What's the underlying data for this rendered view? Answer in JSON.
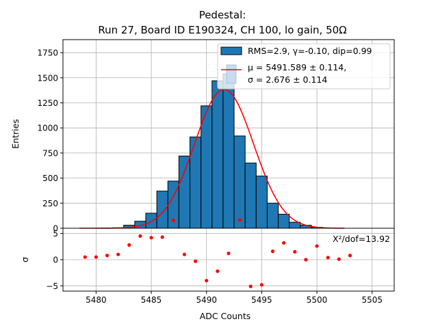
{
  "title_line1": "Pedestal:",
  "title_line2": "Run 27, Board ID E190324, CH 100, lo gain, 50Ω",
  "chart_data": [
    {
      "type": "bar",
      "panel": "histogram",
      "ylabel": "Entries",
      "xlim": [
        5477,
        5507
      ],
      "ylim": [
        0,
        1880
      ],
      "yticks": [
        0,
        250,
        500,
        750,
        1000,
        1250,
        1500,
        1750
      ],
      "bin_width": 1,
      "bins_left": [
        5478.5,
        5479.5,
        5480.5,
        5481.5,
        5482.5,
        5483.5,
        5484.5,
        5485.5,
        5486.5,
        5487.5,
        5488.5,
        5489.5,
        5490.5,
        5491.5,
        5492.5,
        5493.5,
        5494.5,
        5495.5,
        5496.5,
        5497.5,
        5498.5,
        5499.5,
        5500.5,
        5501.5
      ],
      "values": [
        0,
        0,
        2,
        5,
        30,
        70,
        150,
        370,
        470,
        720,
        910,
        1220,
        1470,
        1540,
        920,
        650,
        520,
        250,
        140,
        60,
        30,
        10,
        2,
        0
      ],
      "grid": true,
      "legend_position": "top-right",
      "legend": [
        {
          "kind": "bar",
          "label": "RMS=2.9, γ=-0.10, dip=0.99",
          "color": "#1f77b4"
        },
        {
          "kind": "bar-faded",
          "label": "",
          "color": "#c8dced"
        },
        {
          "kind": "line",
          "label": "μ = 5491.589 ± 0.114,",
          "color": "#ff0000"
        },
        {
          "kind": "text",
          "label": "σ = 2.676 ± 0.114"
        }
      ],
      "fit": {
        "type": "line",
        "mu": 5491.589,
        "sigma": 2.676,
        "amplitude": 1385,
        "x_range": [
          5478.5,
          5502.5
        ],
        "color": "#ff0000"
      }
    },
    {
      "type": "scatter",
      "panel": "residuals",
      "xlabel": "ADC Counts",
      "ylabel": "σ",
      "xlim": [
        5477,
        5507
      ],
      "ylim": [
        -6,
        6
      ],
      "xticks": [
        5480,
        5485,
        5490,
        5495,
        5500,
        5505
      ],
      "yticks": [
        -5,
        0,
        5
      ],
      "grid": true,
      "annotation": "X²/dof=13.92",
      "color": "#ff0000",
      "x": [
        5479,
        5480,
        5481,
        5482,
        5483,
        5484,
        5485,
        5486,
        5487,
        5488,
        5489,
        5490,
        5491,
        5492,
        5493,
        5494,
        5495,
        5496,
        5497,
        5498,
        5499,
        5500,
        5501,
        5502,
        5503
      ],
      "y": [
        0.5,
        0.5,
        0.8,
        1.0,
        2.8,
        4.5,
        4.2,
        4.3,
        7.5,
        1.0,
        -0.3,
        -4.0,
        -2.2,
        1.2,
        7.6,
        -5.1,
        -4.8,
        1.6,
        3.2,
        1.5,
        0.0,
        2.6,
        0.4,
        0.1,
        0.8
      ]
    }
  ]
}
